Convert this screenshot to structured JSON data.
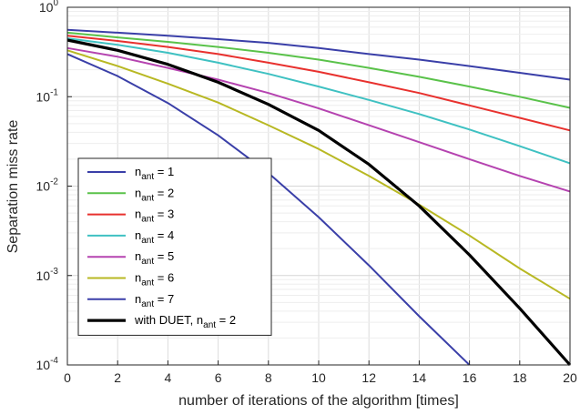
{
  "chart_data": {
    "type": "line",
    "xlabel": "number of iterations of the algorithm [times]",
    "ylabel": "Separation miss rate",
    "xlim": [
      0,
      20
    ],
    "ylim": [
      0.0001,
      1
    ],
    "yscale": "log",
    "grid": true,
    "legend_position": "bottom-left",
    "x_ticks": [
      "0",
      "2",
      "4",
      "6",
      "8",
      "10",
      "12",
      "14",
      "16",
      "18",
      "20"
    ],
    "y_ticks": [
      {
        "base": "10",
        "exp": "0"
      },
      {
        "base": "10",
        "exp": "-1"
      },
      {
        "base": "10",
        "exp": "-2"
      },
      {
        "base": "10",
        "exp": "-3"
      },
      {
        "base": "10",
        "exp": "-4"
      }
    ],
    "x": [
      0,
      2,
      4,
      6,
      8,
      10,
      12,
      14,
      16,
      18,
      20
    ],
    "series": [
      {
        "label": {
          "pre": "n",
          "sub": "ant",
          "post": " = 1"
        },
        "color": "#3a3fa8",
        "width": 2,
        "values": [
          0.56,
          0.52,
          0.48,
          0.44,
          0.4,
          0.35,
          0.3,
          0.26,
          0.22,
          0.185,
          0.155
        ]
      },
      {
        "label": {
          "pre": "n",
          "sub": "ant",
          "post": " = 2"
        },
        "color": "#5ac24a",
        "width": 2,
        "values": [
          0.52,
          0.46,
          0.41,
          0.36,
          0.31,
          0.26,
          0.21,
          0.167,
          0.13,
          0.1,
          0.075
        ]
      },
      {
        "label": {
          "pre": "n",
          "sub": "ant",
          "post": " = 3"
        },
        "color": "#e8312e",
        "width": 2,
        "values": [
          0.48,
          0.42,
          0.36,
          0.3,
          0.24,
          0.19,
          0.145,
          0.11,
          0.08,
          0.058,
          0.042
        ]
      },
      {
        "label": {
          "pre": "n",
          "sub": "ant",
          "post": " = 4"
        },
        "color": "#3fc1c2",
        "width": 2,
        "values": [
          0.45,
          0.38,
          0.31,
          0.24,
          0.18,
          0.13,
          0.092,
          0.064,
          0.043,
          0.028,
          0.018
        ]
      },
      {
        "label": {
          "pre": "n",
          "sub": "ant",
          "post": " = 5"
        },
        "color": "#b543b0",
        "width": 2,
        "values": [
          0.35,
          0.28,
          0.21,
          0.155,
          0.11,
          0.074,
          0.048,
          0.031,
          0.02,
          0.013,
          0.0087
        ]
      },
      {
        "label": {
          "pre": "n",
          "sub": "ant",
          "post": " = 6"
        },
        "color": "#b8b823",
        "width": 2,
        "values": [
          0.33,
          0.22,
          0.14,
          0.086,
          0.048,
          0.026,
          0.013,
          0.0062,
          0.0028,
          0.0012,
          0.00055
        ]
      },
      {
        "label": {
          "pre": "n",
          "sub": "ant",
          "post": " = 7"
        },
        "color": "#3a3fa8",
        "width": 2,
        "values": [
          0.3,
          0.17,
          0.085,
          0.037,
          0.014,
          0.0045,
          0.0013,
          0.00035,
          0.0001,
          null,
          null
        ]
      },
      {
        "label": {
          "pre": "with DUET, n",
          "sub": "ant",
          "post": " = 2"
        },
        "color": "#000000",
        "width": 3.2,
        "values": [
          0.43,
          0.33,
          0.23,
          0.145,
          0.082,
          0.042,
          0.0175,
          0.006,
          0.0017,
          0.00043,
          0.0001
        ]
      }
    ]
  }
}
